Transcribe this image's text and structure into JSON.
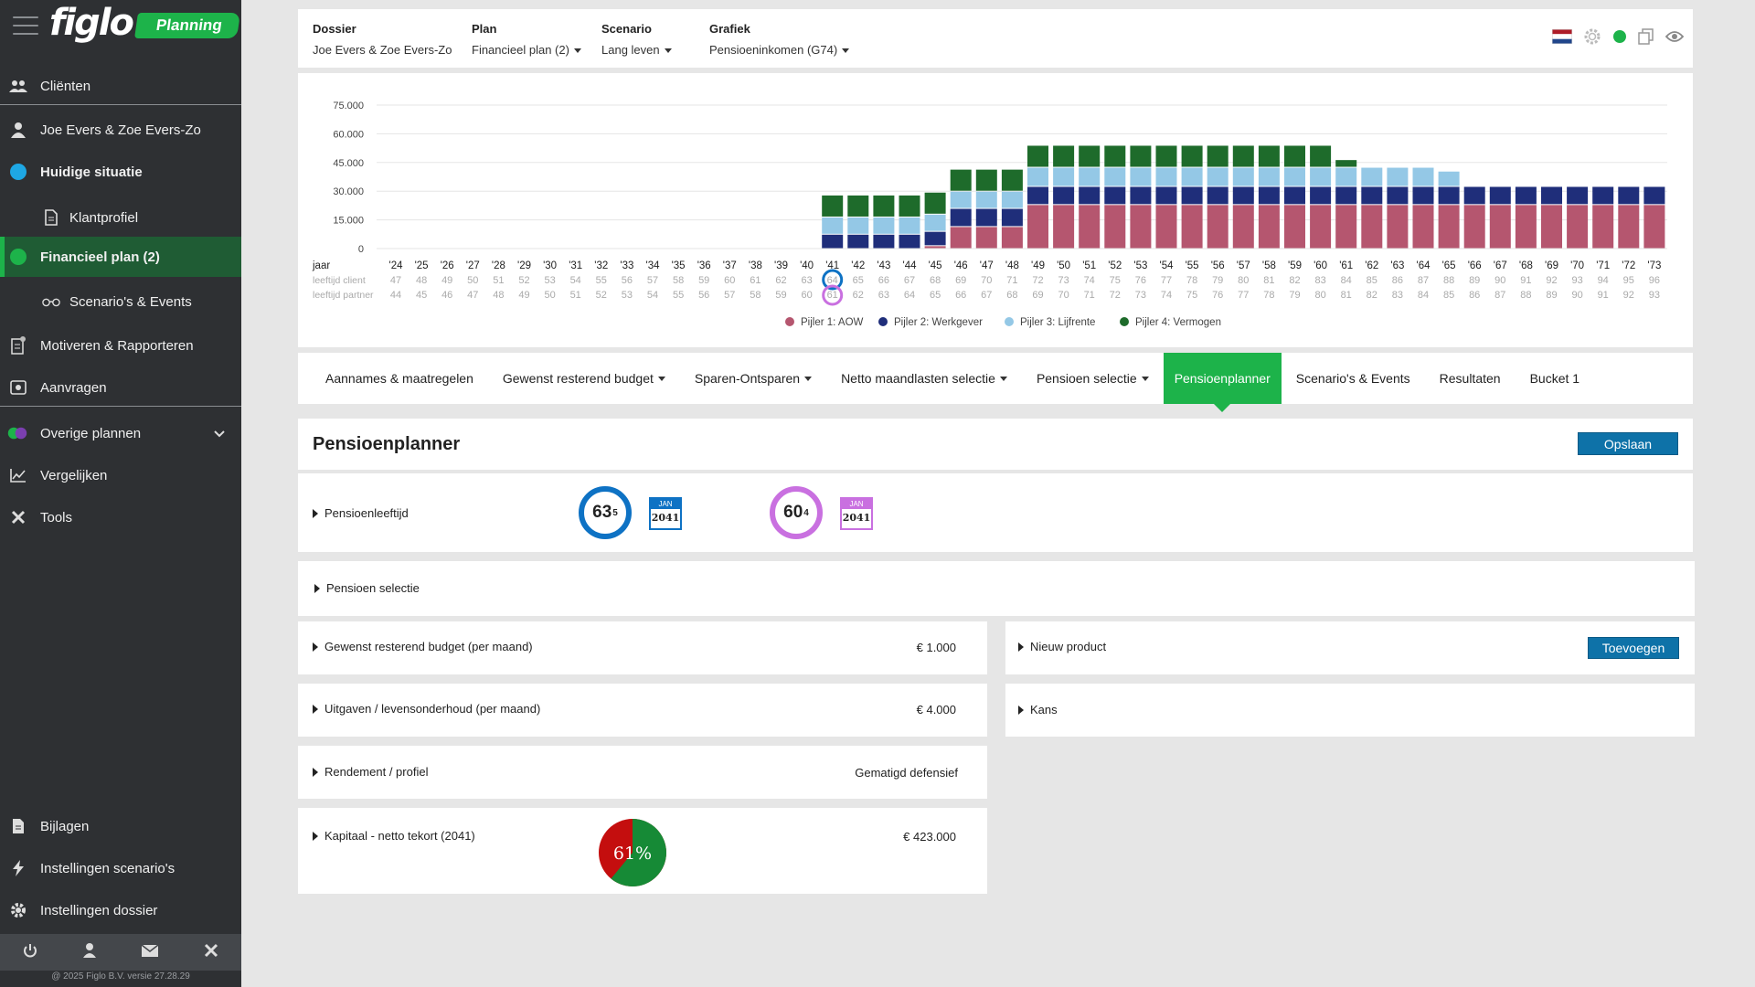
{
  "sidebar": {
    "logo": "figlo",
    "badge": "Planning",
    "items": {
      "clienten": "Cliënten",
      "dossier": "Joe Evers & Zoe Evers-Zo",
      "huidige": "Huidige situatie",
      "klantprofiel": "Klantprofiel",
      "financieel": "Financieel plan (2)",
      "scenarios": "Scenario's & Events",
      "motiveren": "Motiveren & Rapporteren",
      "aanvragen": "Aanvragen",
      "overige": "Overige plannen",
      "vergelijken": "Vergelijken",
      "tools": "Tools",
      "bijlagen": "Bijlagen",
      "instellingen_scenarios": "Instellingen scenario's",
      "instellingen_dossier": "Instellingen dossier"
    },
    "version": "@ 2025 Figlo B.V. versie 27.28.29",
    "colors": {
      "active_green": "#1db34a",
      "huidige_dot": "#1ea7e4",
      "financieel_dot": "#1db34a"
    }
  },
  "topbar": {
    "dossier_label": "Dossier",
    "dossier_value": "Joe Evers & Zoe Evers-Zo",
    "plan_label": "Plan",
    "plan_value": "Financieel plan (2)",
    "scenario_label": "Scenario",
    "scenario_value": "Lang leven",
    "grafiek_label": "Grafiek",
    "grafiek_value": "Pensioeninkomen (G74)",
    "icons": [
      "flag-nl-icon",
      "gear-icon",
      "status-dot-icon",
      "copy-icon",
      "eye-icon"
    ]
  },
  "chart_data": {
    "type": "bar",
    "stacked": true,
    "ylim": [
      0,
      75000
    ],
    "yticks": [
      "75.000",
      "60.000",
      "45.000",
      "30.000",
      "15.000",
      "0"
    ],
    "ytick_values": [
      75000,
      60000,
      45000,
      30000,
      15000,
      0
    ],
    "row_labels": [
      "jaar",
      "leeftijd client",
      "leeftijd partner"
    ],
    "categories": [
      "'24",
      "'25",
      "'26",
      "'27",
      "'28",
      "'29",
      "'30",
      "'31",
      "'32",
      "'33",
      "'34",
      "'35",
      "'36",
      "'37",
      "'38",
      "'39",
      "'40",
      "'41",
      "'42",
      "'43",
      "'44",
      "'45",
      "'46",
      "'47",
      "'48",
      "'49",
      "'50",
      "'51",
      "'52",
      "'53",
      "'54",
      "'55",
      "'56",
      "'57",
      "'58",
      "'59",
      "'60",
      "'61",
      "'62",
      "'63",
      "'64",
      "'65",
      "'66",
      "'67",
      "'68",
      "'69",
      "'70",
      "'71",
      "'72",
      "'73"
    ],
    "age_client": [
      47,
      48,
      49,
      50,
      51,
      52,
      53,
      54,
      55,
      56,
      57,
      58,
      59,
      60,
      61,
      62,
      63,
      64,
      65,
      66,
      67,
      68,
      69,
      70,
      71,
      72,
      73,
      74,
      75,
      76,
      77,
      78,
      79,
      80,
      81,
      82,
      83,
      84,
      85,
      86,
      87,
      88,
      89,
      90,
      91,
      92,
      93,
      94,
      95,
      96
    ],
    "age_partner": [
      44,
      45,
      46,
      47,
      48,
      49,
      50,
      51,
      52,
      53,
      54,
      55,
      56,
      57,
      58,
      59,
      60,
      61,
      62,
      63,
      64,
      65,
      66,
      67,
      68,
      69,
      70,
      71,
      72,
      73,
      74,
      75,
      76,
      77,
      78,
      79,
      80,
      81,
      82,
      83,
      84,
      85,
      86,
      87,
      88,
      89,
      90,
      91,
      92,
      93
    ],
    "highlight_index": 17,
    "series": [
      {
        "name": "Pijler 1: AOW",
        "color": "#b5566f",
        "values": [
          0,
          0,
          0,
          0,
          0,
          0,
          0,
          0,
          0,
          0,
          0,
          0,
          0,
          0,
          0,
          0,
          0,
          0,
          0,
          0,
          0,
          1500,
          11500,
          11500,
          11500,
          23000,
          23000,
          23000,
          23000,
          23000,
          23000,
          23000,
          23000,
          23000,
          23000,
          23000,
          23000,
          23000,
          23000,
          23000,
          23000,
          23000,
          23000,
          23000,
          23000,
          23000,
          23000,
          23000,
          23000,
          23000
        ]
      },
      {
        "name": "Pijler 2: Werkgever",
        "color": "#1f2e7a",
        "values": [
          0,
          0,
          0,
          0,
          0,
          0,
          0,
          0,
          0,
          0,
          0,
          0,
          0,
          0,
          0,
          0,
          0,
          7500,
          7500,
          7500,
          7500,
          7500,
          9500,
          9500,
          9500,
          9500,
          9500,
          9500,
          9500,
          9500,
          9500,
          9500,
          9500,
          9500,
          9500,
          9500,
          9500,
          9500,
          9500,
          9500,
          9500,
          9500,
          9500,
          9500,
          9500,
          9500,
          9500,
          9500,
          9500,
          9500
        ]
      },
      {
        "name": "Pijler 3: Lijfrente",
        "color": "#94c8e6",
        "values": [
          0,
          0,
          0,
          0,
          0,
          0,
          0,
          0,
          0,
          0,
          0,
          0,
          0,
          0,
          0,
          0,
          0,
          9000,
          9000,
          9000,
          9000,
          9000,
          9000,
          9000,
          9000,
          10000,
          10000,
          10000,
          10000,
          10000,
          10000,
          10000,
          10000,
          10000,
          10000,
          10000,
          10000,
          10000,
          10000,
          10000,
          10000,
          8000,
          0,
          0,
          0,
          0,
          0,
          0,
          0,
          0
        ]
      },
      {
        "name": "Pijler 4: Vermogen",
        "color": "#1e6b2b",
        "values": [
          0,
          0,
          0,
          0,
          0,
          0,
          0,
          0,
          0,
          0,
          0,
          0,
          0,
          0,
          0,
          0,
          0,
          11500,
          11500,
          11500,
          11500,
          11500,
          11500,
          11500,
          11500,
          11500,
          11500,
          11500,
          11500,
          11500,
          11500,
          11500,
          11500,
          11500,
          11500,
          11500,
          11500,
          4000,
          0,
          0,
          0,
          0,
          0,
          0,
          0,
          0,
          0,
          0,
          0,
          0
        ]
      }
    ]
  },
  "tabs": {
    "items": [
      {
        "label": "Aannames & maatregelen",
        "caret": false
      },
      {
        "label": "Gewenst resterend budget",
        "caret": true
      },
      {
        "label": "Sparen-Ontsparen",
        "caret": true
      },
      {
        "label": "Netto maandlasten selectie",
        "caret": true
      },
      {
        "label": "Pensioen selectie",
        "caret": true
      },
      {
        "label": "Pensioenplanner",
        "caret": false,
        "active": true
      },
      {
        "label": "Scenario's & Events",
        "caret": false
      },
      {
        "label": "Resultaten",
        "caret": false
      },
      {
        "label": "Bucket 1",
        "caret": false
      }
    ]
  },
  "planner": {
    "title": "Pensioenplanner",
    "save": "Opslaan",
    "pensioenleeftijd": "Pensioenleeftijd",
    "client_age": "63",
    "client_months": "5",
    "client_month": "JAN",
    "client_year": "2041",
    "partner_age": "60",
    "partner_months": "4",
    "partner_month": "JAN",
    "partner_year": "2041",
    "client_color": "#0e72c4",
    "partner_color": "#c970e0",
    "pensioen_selectie": "Pensioen selectie",
    "budget_label": "Gewenst resterend budget (per maand)",
    "budget_value": "€ 1.000",
    "uitgaven_label": "Uitgaven / levensonderhoud (per maand)",
    "uitgaven_value": "€ 4.000",
    "rendement_label": "Rendement / profiel",
    "rendement_value": "Gematigd defensief",
    "kapitaal_label": "Kapitaal - netto tekort (2041)",
    "kapitaal_value": "€ 423.000",
    "kans_pct_text": "61%",
    "kans_pct": 0.61,
    "nieuw_product": "Nieuw product",
    "toevoegen": "Toevoegen",
    "kans": "Kans"
  }
}
